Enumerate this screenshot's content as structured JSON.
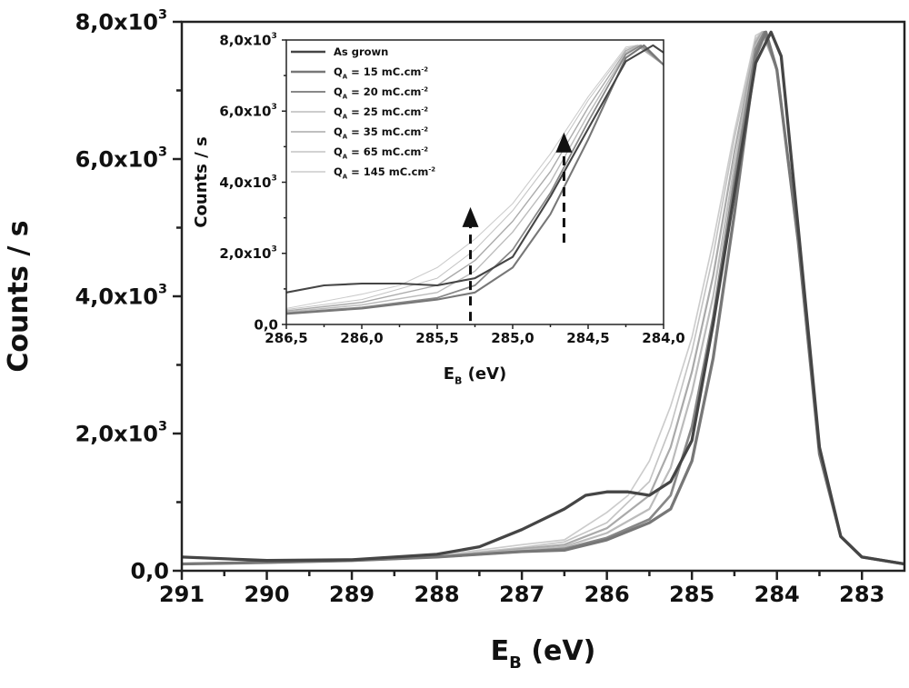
{
  "chart_data": {
    "type": "line",
    "main": {
      "xlabel": {
        "main": "E",
        "sub": "B",
        "rest": " (eV)"
      },
      "ylabel": "Counts / s",
      "xlim": [
        291,
        282.5
      ],
      "ylim": [
        0,
        8000
      ],
      "xticks": [
        291,
        290,
        289,
        288,
        287,
        286,
        285,
        284,
        283
      ],
      "xtick_labels": [
        "291",
        "290",
        "289",
        "288",
        "287",
        "286",
        "285",
        "284",
        "283"
      ],
      "yticks": [
        0,
        2000,
        4000,
        6000,
        8000
      ],
      "ytick_labels": [
        {
          "base": "0,0",
          "sup": ""
        },
        {
          "base": "2,0x10",
          "sup": "3"
        },
        {
          "base": "4,0x10",
          "sup": "3"
        },
        {
          "base": "6,0x10",
          "sup": "3"
        },
        {
          "base": "8,0x10",
          "sup": "3"
        }
      ]
    },
    "inset": {
      "xlabel": {
        "main": "E",
        "sub": "B",
        "rest": " (eV)"
      },
      "ylabel": "Counts / s",
      "xlim": [
        286.5,
        284.0
      ],
      "ylim": [
        0,
        8000
      ],
      "xticks": [
        286.5,
        286.0,
        285.5,
        285.0,
        284.5,
        284.0
      ],
      "xtick_labels": [
        "286,5",
        "286,0",
        "285,5",
        "285,0",
        "284,5",
        "284,0"
      ],
      "yticks": [
        0,
        2000,
        4000,
        6000,
        8000
      ],
      "ytick_labels": [
        {
          "base": "0,0",
          "sup": ""
        },
        {
          "base": "2,0x10",
          "sup": "3"
        },
        {
          "base": "4,0x10",
          "sup": "3"
        },
        {
          "base": "6,0x10",
          "sup": "3"
        },
        {
          "base": "8,0x10",
          "sup": "3"
        }
      ],
      "arrows": [
        {
          "x": 285.28,
          "y_from": 100,
          "y_to": 3300
        },
        {
          "x": 284.66,
          "y_from": 2300,
          "y_to": 5400
        }
      ],
      "legend_position": "top-left"
    },
    "series": [
      {
        "name": {
          "main": "As grown",
          "sub": "",
          "rest": "",
          "sup": ""
        },
        "color": "#454545",
        "width": 3,
        "x": [
          291,
          290,
          289,
          288,
          287.5,
          287,
          286.5,
          286.25,
          286,
          285.75,
          285.5,
          285.25,
          285,
          284.75,
          284.5,
          284.25,
          284.07,
          283.95,
          283.75,
          283.5,
          283.25,
          283,
          282.5
        ],
        "y": [
          200,
          150,
          160,
          240,
          350,
          600,
          900,
          1100,
          1150,
          1150,
          1100,
          1300,
          1900,
          3600,
          5500,
          7400,
          7850,
          7500,
          5000,
          1800,
          500,
          200,
          100
        ]
      },
      {
        "name": {
          "main": "Q",
          "sub": "A",
          "rest": " = 15 mC.cm",
          "sup": "-2"
        },
        "color": "#777777",
        "width": 3,
        "x": [
          291,
          290,
          289,
          288,
          287,
          286.5,
          286,
          285.5,
          285.25,
          285,
          284.75,
          284.5,
          284.25,
          284.13,
          284,
          283.75,
          283.5,
          283.25,
          283,
          282.5
        ],
        "y": [
          100,
          120,
          150,
          200,
          280,
          300,
          450,
          700,
          900,
          1600,
          3100,
          5200,
          7500,
          7850,
          7300,
          4800,
          1700,
          500,
          200,
          100
        ]
      },
      {
        "name": {
          "main": "Q",
          "sub": "A",
          "rest": " = 20 mC.cm",
          "sup": "-2"
        },
        "color": "#888888",
        "width": 2.5,
        "x": [
          291,
          290,
          289,
          288,
          287,
          286.5,
          286,
          285.5,
          285.25,
          285,
          284.75,
          284.5,
          284.25,
          284.15,
          284,
          283.75,
          283.5,
          283.25,
          283,
          282.5
        ],
        "y": [
          100,
          120,
          150,
          200,
          280,
          320,
          480,
          750,
          1100,
          2100,
          3700,
          5700,
          7600,
          7850,
          7300,
          4800,
          1700,
          500,
          200,
          100
        ]
      },
      {
        "name": {
          "main": "Q",
          "sub": "A",
          "rest": " = 25 mC.cm",
          "sup": "-2"
        },
        "color": "#bbbbbb",
        "width": 2,
        "x": [
          291,
          290,
          289,
          288,
          287,
          286.5,
          286,
          285.5,
          285.25,
          285,
          284.75,
          284.5,
          284.25,
          284.16,
          284,
          283.75,
          283.5,
          283.25,
          283,
          282.5
        ],
        "y": [
          100,
          120,
          150,
          200,
          300,
          350,
          550,
          900,
          1500,
          2600,
          4000,
          5900,
          7650,
          7850,
          7300,
          4800,
          1700,
          500,
          200,
          100
        ]
      },
      {
        "name": {
          "main": "Q",
          "sub": "A",
          "rest": " = 35 mC.cm",
          "sup": "-2"
        },
        "color": "#aaaaaa",
        "width": 2,
        "x": [
          291,
          290,
          289,
          288,
          287,
          286.5,
          286,
          285.5,
          285.25,
          285,
          284.75,
          284.5,
          284.25,
          284.17,
          284,
          283.75,
          283.5,
          283.25,
          283,
          282.5
        ],
        "y": [
          100,
          120,
          150,
          200,
          320,
          380,
          620,
          1100,
          1800,
          2900,
          4300,
          6100,
          7700,
          7850,
          7300,
          4800,
          1700,
          500,
          200,
          100
        ]
      },
      {
        "name": {
          "main": "Q",
          "sub": "A",
          "rest": " = 65 mC.cm",
          "sup": "-2"
        },
        "color": "#c4c4c4",
        "width": 1.5,
        "x": [
          291,
          290,
          289,
          288,
          287,
          286.5,
          286,
          285.5,
          285.25,
          285,
          284.75,
          284.5,
          284.25,
          284.18,
          284,
          283.75,
          283.5,
          283.25,
          283,
          282.5
        ],
        "y": [
          100,
          120,
          150,
          210,
          340,
          420,
          700,
          1300,
          2100,
          3200,
          4600,
          6300,
          7750,
          7850,
          7300,
          4800,
          1700,
          500,
          200,
          100
        ]
      },
      {
        "name": {
          "main": "Q",
          "sub": "A",
          "rest": " = 145 mC.cm",
          "sup": "-2"
        },
        "color": "#cccccc",
        "width": 1.5,
        "x": [
          291,
          290,
          289,
          288,
          287,
          286.5,
          286,
          285.75,
          285.5,
          285.25,
          285,
          284.75,
          284.5,
          284.25,
          284.18,
          284,
          283.75,
          283.5,
          283.25,
          283,
          282.5
        ],
        "y": [
          100,
          120,
          150,
          220,
          380,
          450,
          850,
          1100,
          1600,
          2400,
          3400,
          4800,
          6400,
          7800,
          7850,
          7300,
          4800,
          1700,
          500,
          200,
          100
        ]
      }
    ]
  }
}
